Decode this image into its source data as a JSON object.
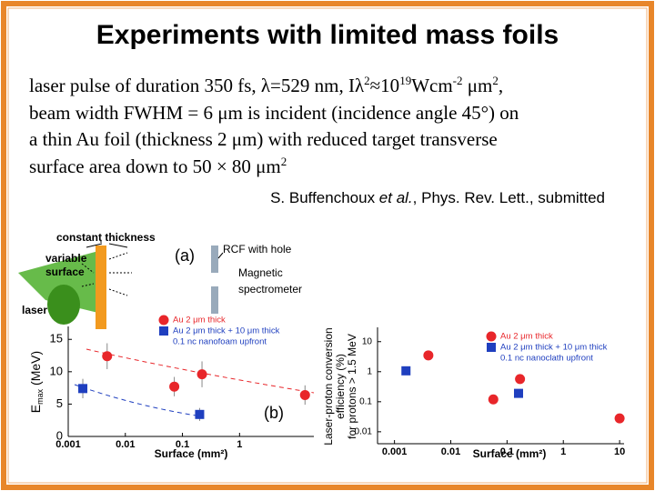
{
  "title": "Experiments with limited mass foils",
  "body": [
    [
      "laser pulse of duration 350 fs, λ=529 nm, Iλ",
      {
        "sup": "2"
      },
      "≈10",
      {
        "sup": "19"
      },
      "Wcm",
      {
        "sup": "-2"
      },
      " μm",
      {
        "sup": "2"
      },
      ","
    ],
    [
      "beam width FWHM = 6 μm is incident (incidence angle 45°) on"
    ],
    [
      "a thin Au foil (thickness 2 μm) with reduced target transverse"
    ],
    [
      "surface area down to 50 × 80 μm",
      {
        "sup": "2"
      }
    ]
  ],
  "citation": [
    "S. Buffenchoux ",
    {
      "italic": "et al."
    },
    ", Phys. Rev. Lett., submitted"
  ],
  "diagram": {
    "labels": [
      "constant thickness",
      "variable",
      "surface",
      "laser",
      "(a)",
      "RCF with hole",
      "Magnetic",
      "spectrometer"
    ]
  },
  "chart_data": [
    {
      "type": "scatter",
      "xlabel": "Surface (mm²)",
      "ylabel": [
        "E",
        {
          "sub": "max"
        },
        " (MeV)"
      ],
      "annotation": "(b)",
      "xlog": true,
      "xlim": [
        0.001,
        20
      ],
      "xticks": [
        0.001,
        0.01,
        0.1,
        1
      ],
      "ylim": [
        0,
        17
      ],
      "yticks": [
        0,
        5,
        10,
        15
      ],
      "series": [
        {
          "name": "Au 2 μm thick",
          "color": "#e8262a",
          "marker": "circle",
          "x": [
            0.0048,
            0.072,
            0.22,
            14
          ],
          "values": [
            12.4,
            7.7,
            9.6,
            6.4
          ],
          "errors": [
            2,
            1.5,
            2,
            1.5
          ]
        },
        {
          "name": "Au 2 μm thick + 10 μm thick",
          "legend_extra": "0.1 nc nanofoam upfront",
          "color": "#1f3fbf",
          "marker": "square",
          "x": [
            0.0018,
            0.2
          ],
          "values": [
            7.4,
            3.4
          ],
          "errors": [
            1.5,
            1
          ]
        }
      ]
    },
    {
      "type": "scatter",
      "xlabel": "Surface (mm²)",
      "ylabel_lines": [
        "Laser-proton conversion",
        "efficiency (%)",
        "for protons > 1.5 MeV"
      ],
      "xlog": true,
      "ylog": true,
      "xlim": [
        0.0005,
        12
      ],
      "xticks": [
        0.001,
        0.01,
        0.1,
        1,
        10
      ],
      "ylim": [
        0.004,
        30
      ],
      "yticks": [
        0.01,
        0.1,
        1,
        10
      ],
      "series": [
        {
          "name": "Au 2 μm thick",
          "color": "#e8262a",
          "marker": "circle",
          "x": [
            0.004,
            0.057,
            0.17,
            10
          ],
          "values": [
            3.5,
            0.12,
            0.57,
            0.028
          ]
        },
        {
          "name": "Au 2 μm thick + 10 μm thick",
          "legend_extra": "0.1 nc nanoclath upfront",
          "color": "#1f3fbf",
          "marker": "square",
          "x": [
            0.0016,
            0.16
          ],
          "values": [
            1.07,
            0.19
          ]
        }
      ]
    }
  ]
}
